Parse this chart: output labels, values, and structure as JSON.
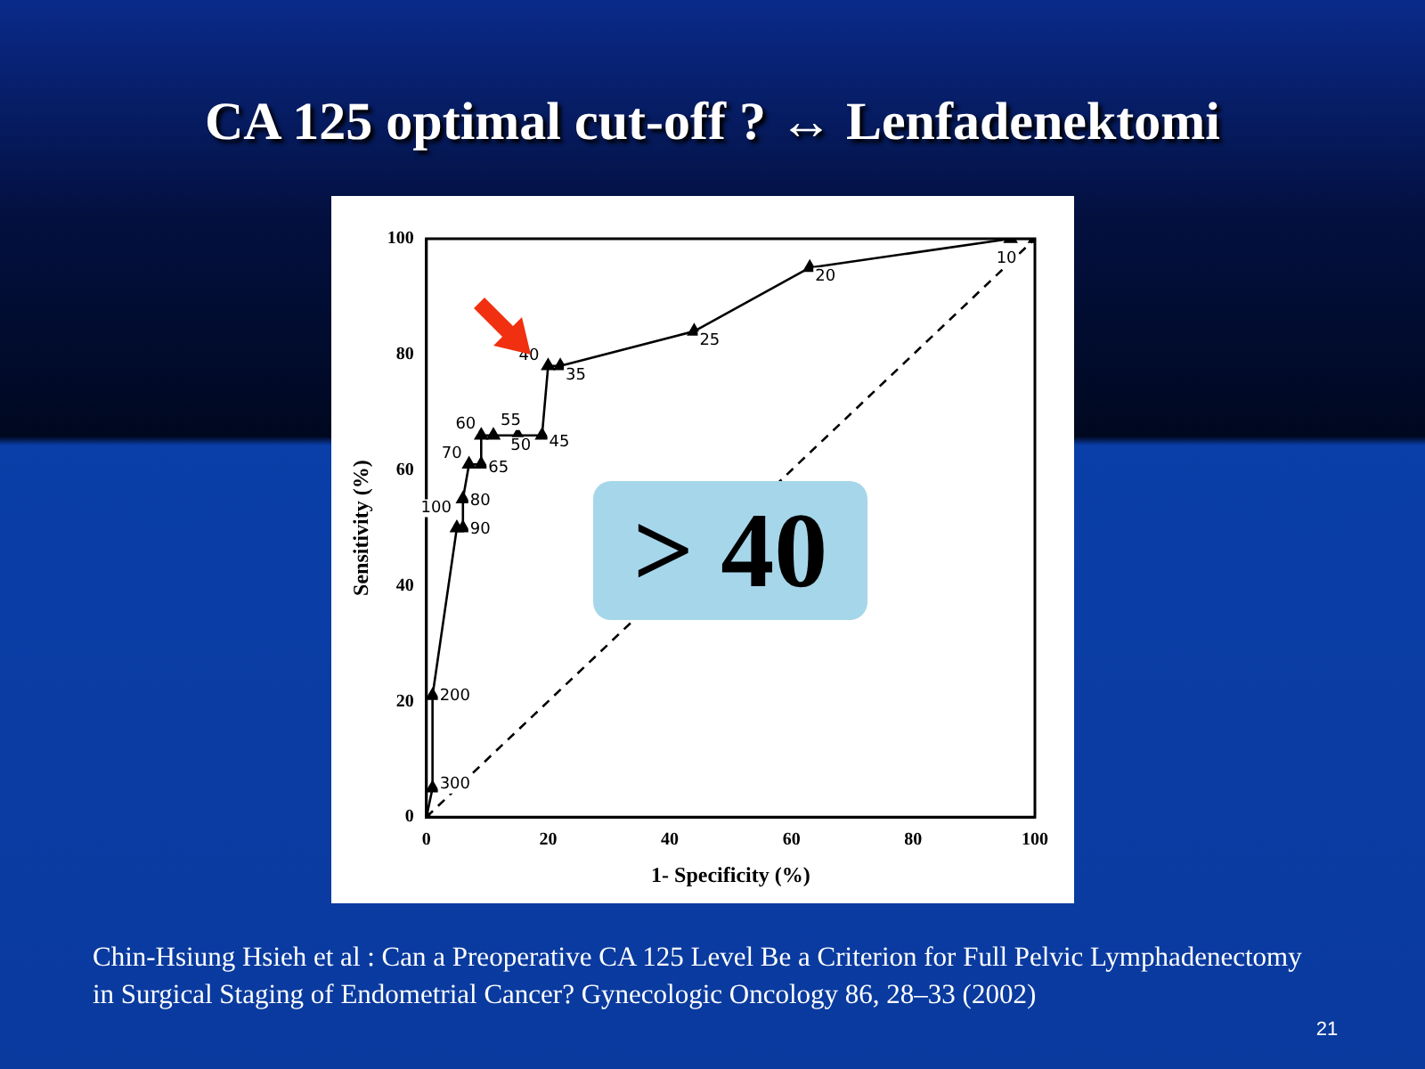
{
  "chart_data": {
    "type": "line",
    "title": "CA 125 optimal cut-off ? ↔ Lenfadenektomi",
    "xlabel": "1- Specificity (%)",
    "ylabel": "Sensitivity (%)",
    "xlim": [
      0,
      100
    ],
    "ylim": [
      0,
      100
    ],
    "xticks": [
      0,
      20,
      40,
      60,
      80,
      100
    ],
    "yticks": [
      0,
      20,
      40,
      60,
      80,
      100
    ],
    "grid": false,
    "legend": false,
    "series": [
      {
        "type": "line",
        "color": "#000000",
        "marker": "triangle",
        "line_style": "solid",
        "x": [
          0,
          1,
          1,
          5,
          6,
          6,
          7,
          9,
          9,
          11,
          15,
          19,
          20,
          22,
          44,
          63,
          96,
          100
        ],
        "values": [
          0,
          5,
          21,
          50,
          50,
          55,
          61,
          61,
          66,
          66,
          66,
          66,
          78,
          78,
          84,
          95,
          100,
          100
        ]
      },
      {
        "type": "line",
        "color": "#000000",
        "marker": "none",
        "line_style": "dashed",
        "x": [
          0,
          100
        ],
        "values": [
          0,
          100
        ]
      }
    ],
    "annotations": [
      {
        "text": "300",
        "x": 1,
        "y": 5
      },
      {
        "text": "200",
        "x": 1,
        "y": 21
      },
      {
        "text": "100",
        "x": 5,
        "y": 50
      },
      {
        "text": "90",
        "x": 6,
        "y": 50
      },
      {
        "text": "80",
        "x": 6,
        "y": 55
      },
      {
        "text": "70",
        "x": 7,
        "y": 61
      },
      {
        "text": "65",
        "x": 9,
        "y": 61
      },
      {
        "text": "60",
        "x": 9,
        "y": 66
      },
      {
        "text": "55",
        "x": 11,
        "y": 66
      },
      {
        "text": "50",
        "x": 15,
        "y": 66
      },
      {
        "text": "45",
        "x": 19,
        "y": 66
      },
      {
        "text": "40",
        "x": 20,
        "y": 78
      },
      {
        "text": "35",
        "x": 22,
        "y": 78
      },
      {
        "text": "25",
        "x": 44,
        "y": 84
      },
      {
        "text": "20",
        "x": 63,
        "y": 95
      },
      {
        "text": "10",
        "x": 96,
        "y": 100
      },
      "> 40",
      "Chin-Hsiung Hsieh et al : Can a Preoperative CA 125 Level Be a Criterion for Full Pelvic Lymphadenectomy in Surgical Staging of Endometrial Cancer? Gynecologic Oncology 86, 28–33 (2002)",
      "21"
    ]
  }
}
